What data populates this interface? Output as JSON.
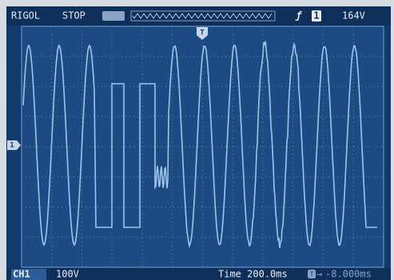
{
  "top_bar": {
    "brand": "RIGOL",
    "status": "STOP",
    "trigger_source": "1",
    "trigger_level": "164V"
  },
  "bottom_bar": {
    "channel": "CH1",
    "scale": "100V",
    "timebase": "Time 200.0ms",
    "trigger_offset": "-8.000ms"
  },
  "channel_marker": "1",
  "trigger_marker": "T"
}
